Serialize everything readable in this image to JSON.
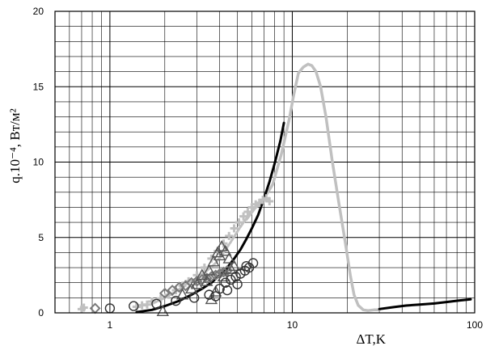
{
  "chart_data": {
    "type": "scatter",
    "xscale": "log",
    "xlim": [
      0.5,
      100
    ],
    "ylim": [
      0,
      20
    ],
    "grid": true,
    "xlabel": "ΔT,K",
    "ylabel": "q.10⁻⁴, Вт/м²",
    "x_ticks": [
      {
        "value": 1,
        "label": "1"
      },
      {
        "value": 10,
        "label": "10"
      },
      {
        "value": 100,
        "label": "100"
      }
    ],
    "y_ticks": [
      {
        "value": 0,
        "label": "0"
      },
      {
        "value": 5,
        "label": "5"
      },
      {
        "value": 10,
        "label": "10"
      },
      {
        "value": 15,
        "label": "15"
      },
      {
        "value": 20,
        "label": "20"
      }
    ],
    "series": [
      {
        "kind": "line",
        "color": "#c0c0c0",
        "width": 3.5,
        "dash": "none",
        "x": [
          5.6,
          6.2,
          7.0,
          7.8,
          8.7,
          9.6,
          10.2,
          10.8,
          11.5,
          12.2,
          12.8,
          13.5,
          14.3,
          15.3,
          16.5,
          18.0,
          19.5,
          20.8,
          21.8,
          23.0,
          24.5,
          26.0,
          28.0,
          30.0
        ],
        "y": [
          6.2,
          6.9,
          7.6,
          8.5,
          10.5,
          12.8,
          14.5,
          15.9,
          16.3,
          16.5,
          16.4,
          16.0,
          15.0,
          13.0,
          10.2,
          7.3,
          4.7,
          2.5,
          1.2,
          0.5,
          0.2,
          0.15,
          0.2,
          0.2
        ]
      },
      {
        "kind": "line",
        "color": "#000000",
        "width": 3,
        "dash": "none",
        "x": [
          1.4,
          1.7,
          2.0,
          2.4,
          2.8,
          3.2,
          3.6,
          4.0,
          4.4,
          4.8,
          5.2,
          5.6,
          6.0,
          6.5,
          7.0,
          7.5,
          8.0,
          8.6,
          9.0
        ],
        "y": [
          0.05,
          0.2,
          0.45,
          0.8,
          1.2,
          1.6,
          2.0,
          2.5,
          3.0,
          3.6,
          4.2,
          4.9,
          5.6,
          6.5,
          7.6,
          8.7,
          9.9,
          11.4,
          12.6
        ]
      },
      {
        "kind": "line",
        "color": "#000000",
        "width": 3,
        "dash": "none",
        "x": [
          30,
          36,
          42,
          50,
          60,
          70,
          82,
          95
        ],
        "y": [
          0.25,
          0.38,
          0.48,
          0.55,
          0.62,
          0.72,
          0.82,
          0.9
        ]
      },
      {
        "kind": "line",
        "color": "#c0c0c0",
        "width": 3,
        "dash": "2 2",
        "x": [
          1.7,
          2.0,
          2.3,
          2.6,
          3.0,
          3.4,
          3.8,
          4.2,
          4.6,
          5.0,
          5.4,
          5.8,
          6.2,
          6.6,
          7.0,
          7.5
        ],
        "y": [
          0.6,
          1.0,
          1.4,
          1.9,
          2.3,
          2.8,
          3.3,
          4.0,
          4.7,
          5.4,
          6.0,
          6.5,
          7.0,
          7.3,
          7.5,
          7.6
        ]
      },
      {
        "kind": "marker",
        "marker": "plus",
        "color": "#c0c0c0",
        "x": [
          0.7,
          0.72,
          1.4,
          1.5,
          1.6,
          1.7,
          1.9,
          2.1,
          2.3,
          2.5,
          2.7,
          3.0,
          3.3,
          3.6,
          3.9,
          4.2,
          4.5,
          4.8,
          5.1,
          5.4,
          5.7,
          6.0,
          6.3,
          6.6,
          6.9,
          7.2,
          7.5
        ],
        "y": [
          0.25,
          0.35,
          0.4,
          0.5,
          0.55,
          0.75,
          0.95,
          1.2,
          1.5,
          1.8,
          2.1,
          2.5,
          3.0,
          3.6,
          4.1,
          4.6,
          5.1,
          5.6,
          6.0,
          6.4,
          6.7,
          7.0,
          7.2,
          7.3,
          7.5,
          7.6,
          7.4
        ]
      },
      {
        "kind": "marker",
        "marker": "diamond",
        "color": "#7a7a7a",
        "x": [
          0.83,
          2.0,
          2.2,
          2.4,
          2.6,
          2.8,
          3.0,
          3.2,
          3.4,
          3.6,
          3.8,
          4.0,
          4.2,
          4.4
        ],
        "y": [
          0.3,
          1.3,
          1.5,
          1.7,
          1.8,
          2.0,
          2.1,
          2.2,
          2.3,
          2.4,
          2.5,
          2.6,
          2.7,
          2.8
        ]
      },
      {
        "kind": "marker",
        "marker": "triangle",
        "color": "#555555",
        "x": [
          1.95,
          2.5,
          2.8,
          3.0,
          3.2,
          3.5,
          3.7,
          3.9,
          4.1,
          4.3,
          4.5,
          4.2,
          3.8,
          4.6,
          4.0,
          3.4,
          4.8,
          3.6
        ],
        "y": [
          0.1,
          1.2,
          1.6,
          1.9,
          2.5,
          2.8,
          3.4,
          4.0,
          4.4,
          4.1,
          3.6,
          2.4,
          1.4,
          2.9,
          3.8,
          2.1,
          3.1,
          0.9
        ]
      },
      {
        "kind": "marker",
        "marker": "circle",
        "color": "#333333",
        "x": [
          1.0,
          1.35,
          1.8,
          2.3,
          2.9,
          3.5,
          4.0,
          4.3,
          4.6,
          4.9,
          5.2,
          5.5,
          5.8,
          6.1,
          5.0,
          4.4,
          3.8,
          5.6
        ],
        "y": [
          0.3,
          0.45,
          0.6,
          0.8,
          1.0,
          1.2,
          1.6,
          2.0,
          2.2,
          2.4,
          2.6,
          2.8,
          3.0,
          3.3,
          1.9,
          1.5,
          1.1,
          3.1
        ]
      }
    ]
  }
}
